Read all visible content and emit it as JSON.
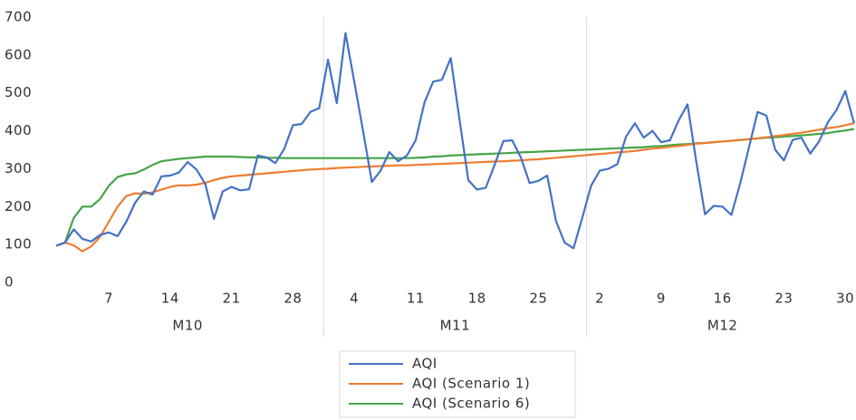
{
  "chart_data": {
    "type": "line",
    "categories": [
      null,
      null,
      null,
      null,
      null,
      null,
      "7",
      null,
      null,
      null,
      null,
      null,
      null,
      "14",
      null,
      null,
      null,
      null,
      null,
      null,
      "21",
      null,
      null,
      null,
      null,
      null,
      null,
      "28",
      null,
      null,
      null,
      null,
      null,
      null,
      "4",
      null,
      null,
      null,
      null,
      null,
      null,
      "11",
      null,
      null,
      null,
      null,
      null,
      null,
      "18",
      null,
      null,
      null,
      null,
      null,
      null,
      "25",
      null,
      null,
      null,
      null,
      null,
      null,
      "2",
      null,
      null,
      null,
      null,
      null,
      null,
      "9",
      null,
      null,
      null,
      null,
      null,
      null,
      "16",
      null,
      null,
      null,
      null,
      null,
      null,
      "23",
      null,
      null,
      null,
      null,
      null,
      null,
      "30",
      null
    ],
    "groups": [
      "M10",
      "M11",
      "M12"
    ],
    "series": [
      {
        "name": "AQI",
        "color": "#4472c4",
        "values": [
          97,
          105,
          140,
          115,
          108,
          125,
          132,
          122,
          160,
          210,
          240,
          232,
          280,
          282,
          290,
          318,
          298,
          260,
          168,
          240,
          252,
          243,
          246,
          335,
          330,
          315,
          352,
          415,
          418,
          450,
          460,
          588,
          473,
          658,
          530,
          400,
          265,
          295,
          344,
          320,
          335,
          375,
          475,
          530,
          535,
          592,
          430,
          270,
          245,
          250,
          310,
          373,
          375,
          330,
          262,
          268,
          282,
          162,
          105,
          90,
          170,
          255,
          295,
          300,
          312,
          385,
          420,
          382,
          400,
          370,
          375,
          428,
          470,
          320,
          180,
          202,
          200,
          178,
          260,
          355,
          450,
          440,
          350,
          322,
          376,
          382,
          340,
          372,
          422,
          455,
          505,
          420
        ]
      },
      {
        "name": "AQI (Scenario 1)",
        "color": "#ed7d31",
        "values": [
          97,
          105,
          98,
          82,
          95,
          120,
          160,
          200,
          228,
          235,
          234,
          238,
          245,
          252,
          256,
          256,
          258,
          263,
          270,
          276,
          280,
          282,
          284,
          286,
          288,
          290,
          292,
          294,
          296,
          298,
          299,
          300,
          302,
          303,
          304,
          305,
          306,
          307,
          308,
          309,
          309,
          310,
          311,
          312,
          313,
          314,
          315,
          316,
          317,
          318,
          319,
          320,
          321,
          322,
          324,
          325,
          327,
          329,
          331,
          333,
          335,
          337,
          339,
          341,
          343,
          345,
          347,
          350,
          353,
          355,
          358,
          360,
          363,
          366,
          368,
          370,
          372,
          374,
          376,
          378,
          380,
          383,
          386,
          389,
          392,
          395,
          399,
          403,
          407,
          410,
          415,
          420
        ]
      },
      {
        "name": "AQI (Scenario 6)",
        "color": "#47a447",
        "values": [
          97,
          105,
          170,
          200,
          200,
          220,
          255,
          278,
          285,
          288,
          298,
          310,
          320,
          323,
          326,
          328,
          330,
          332,
          332,
          332,
          332,
          331,
          330,
          330,
          329,
          329,
          328,
          328,
          328,
          328,
          328,
          328,
          328,
          328,
          328,
          328,
          328,
          328,
          328,
          328,
          328,
          329,
          330,
          332,
          333,
          335,
          336,
          337,
          338,
          339,
          340,
          341,
          342,
          343,
          344,
          345,
          346,
          347,
          348,
          349,
          350,
          351,
          352,
          353,
          354,
          355,
          356,
          357,
          359,
          360,
          362,
          364,
          365,
          367,
          368,
          370,
          372,
          374,
          376,
          378,
          380,
          382,
          383,
          385,
          386,
          388,
          390,
          392,
          394,
          398,
          401,
          405
        ]
      }
    ],
    "ylim": [
      0,
      700
    ],
    "yticks": [
      0,
      100,
      200,
      300,
      400,
      500,
      600,
      700
    ],
    "grid": false,
    "legend": "bottom"
  }
}
